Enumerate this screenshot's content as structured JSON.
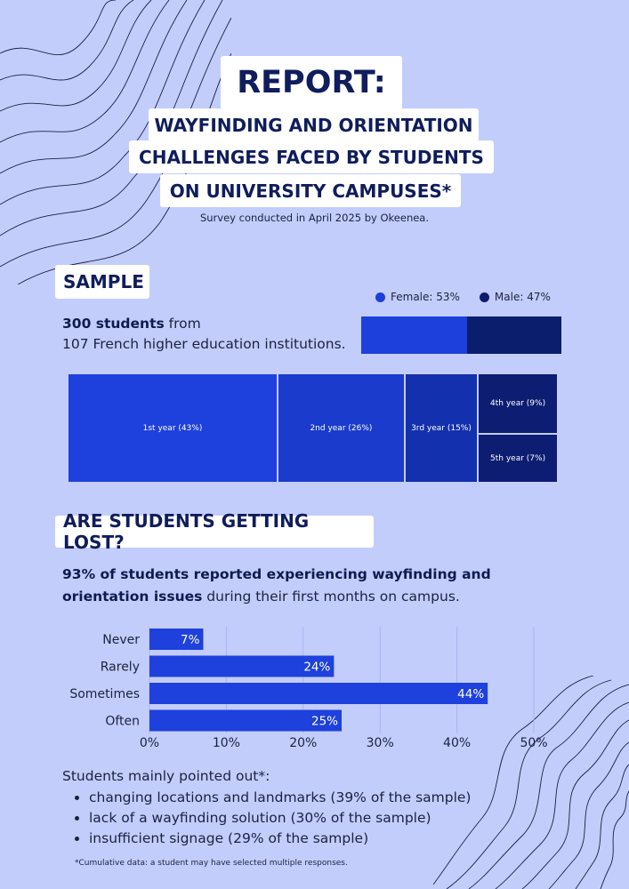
{
  "header": {
    "title": "REPORT:",
    "subtitle_lines": [
      "WAYFINDING AND ORIENTATION",
      "CHALLENGES FACED BY STUDENTS",
      "ON UNIVERSITY CAMPUSES*"
    ],
    "survey_note": "Survey conducted in April 2025 by Okeenea."
  },
  "sample": {
    "heading": "SAMPLE",
    "count_bold": "300 students",
    "count_rest": " from",
    "line2": "107 French higher education institutions."
  },
  "colors": {
    "female": "#1d3fdb",
    "male": "#0b1e6e",
    "bar": "#1e40dd",
    "tile_dark": "#0c1d72"
  },
  "chart_data": [
    {
      "type": "bar",
      "orientation": "stacked-horizontal",
      "categories": [
        "Female",
        "Male"
      ],
      "values": [
        53,
        47
      ],
      "legend": [
        "Female: 53%",
        "Male: 47%"
      ]
    },
    {
      "type": "treemap",
      "categories": [
        "1st year (43%)",
        "2nd year (26%)",
        "3rd year (15%)",
        "4th year (9%)",
        "5th year (7%)"
      ],
      "values": [
        43,
        26,
        15,
        9,
        7
      ]
    },
    {
      "type": "bar",
      "orientation": "horizontal",
      "categories": [
        "Never",
        "Rarely",
        "Sometimes",
        "Often"
      ],
      "values": [
        7,
        24,
        44,
        25
      ],
      "labels": [
        "7%",
        "24%",
        "44%",
        "25%"
      ],
      "xticks": [
        "0%",
        "10%",
        "20%",
        "30%",
        "40%",
        "50%"
      ],
      "xlim": [
        0,
        50
      ],
      "grid": true
    }
  ],
  "lost": {
    "heading": "ARE STUDENTS GETTING LOST?",
    "text_bold": "93% of students reported experiencing wayfinding and orientation issues",
    "text_rest": " during their first months on campus."
  },
  "points": {
    "intro": "Students mainly pointed out*:",
    "items": [
      "changing locations and landmarks (39% of the sample)",
      "lack of a wayfinding solution (30% of the sample)",
      "insufficient signage (29% of the sample)"
    ]
  },
  "footnote": "*Cumulative data: a student may have selected multiple responses."
}
